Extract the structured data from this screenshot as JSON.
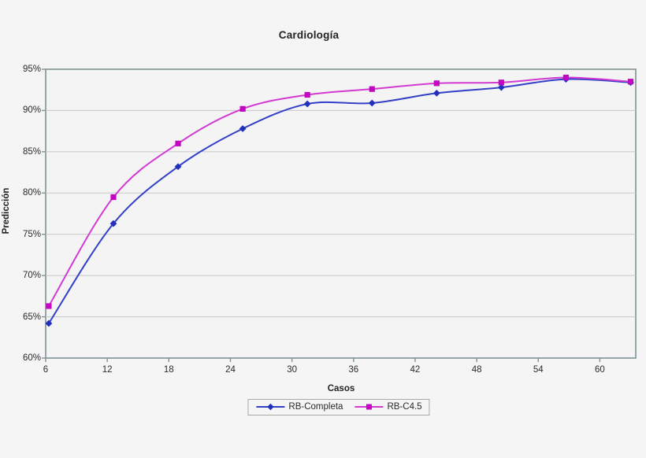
{
  "page_background": "#f5f5f6",
  "chart_data": {
    "type": "line",
    "title": "Cardiología",
    "xlabel": "Casos",
    "ylabel": "Predicción",
    "x": [
      6.3,
      12.6,
      18.9,
      25.2,
      31.5,
      37.8,
      44.1,
      50.4,
      56.7,
      63
    ],
    "series": [
      {
        "name": "RB-Completa",
        "marker": "diamond",
        "line_color": "#3340c6",
        "marker_color": "#2330be",
        "values": [
          64.2,
          76.3,
          83.2,
          87.8,
          90.8,
          90.9,
          92.1,
          92.8,
          93.8,
          93.4
        ]
      },
      {
        "name": "RB-C4.5",
        "marker": "square",
        "line_color": "#d23bd2",
        "marker_color": "#c405c4",
        "values": [
          66.3,
          79.5,
          86.0,
          90.2,
          91.9,
          92.6,
          93.3,
          93.4,
          94.0,
          93.5
        ]
      }
    ],
    "x_ticks": [
      6,
      12,
      18,
      24,
      30,
      36,
      42,
      48,
      54,
      60
    ],
    "y_ticks": [
      {
        "value": 95,
        "label": "95%"
      },
      {
        "value": 90,
        "label": "90%"
      },
      {
        "value": 85,
        "label": "85%"
      },
      {
        "value": 80,
        "label": "80%"
      },
      {
        "value": 75,
        "label": "75%"
      },
      {
        "value": 70,
        "label": "70%"
      },
      {
        "value": 65,
        "label": "65%"
      },
      {
        "value": 60,
        "label": "60%"
      }
    ],
    "xlim": [
      6,
      63.5
    ],
    "ylim": [
      60,
      95
    ],
    "grid": "horizontal",
    "smooth": true,
    "legend_position": "bottom",
    "frame_color": "#7e9294",
    "gridline_color": "#c8c8c8",
    "plot_background": "#f4f4f5"
  }
}
